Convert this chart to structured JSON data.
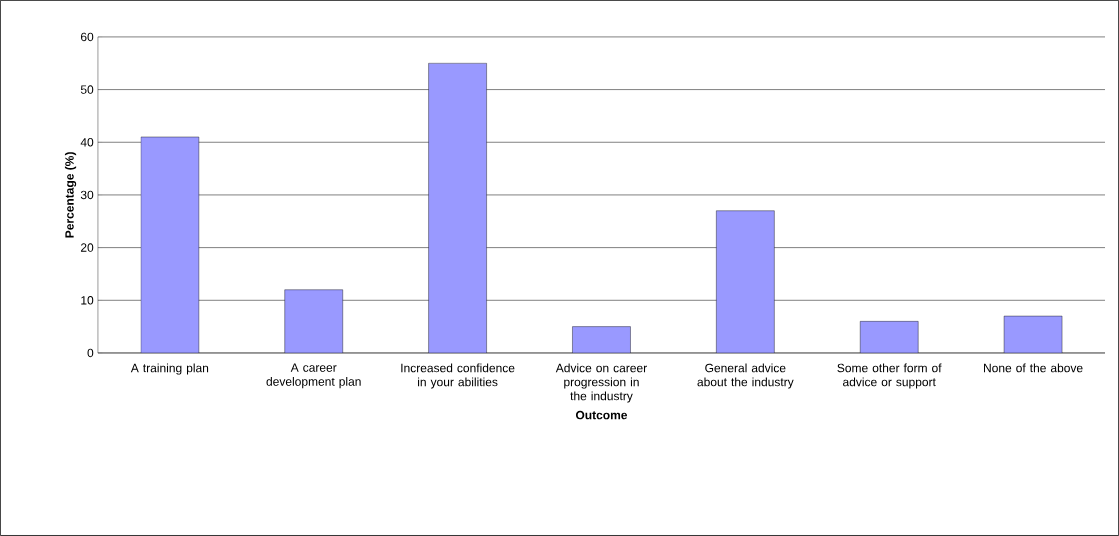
{
  "chart_data": {
    "type": "bar",
    "xlabel": "Outcome",
    "ylabel": "Percentage (%)",
    "categories": [
      "A training plan",
      "A career development plan",
      "Increased confidence in your abilities",
      "Advice on career progression in the industry",
      "General advice about the industry",
      "Some other form of advice or support",
      "None of the above"
    ],
    "values": [
      41,
      12,
      55,
      5,
      27,
      6,
      7
    ],
    "color": "#9999ff",
    "ylim": [
      0,
      60
    ],
    "yticks": [
      0,
      10,
      20,
      30,
      40,
      50,
      60
    ],
    "grid": "y"
  }
}
